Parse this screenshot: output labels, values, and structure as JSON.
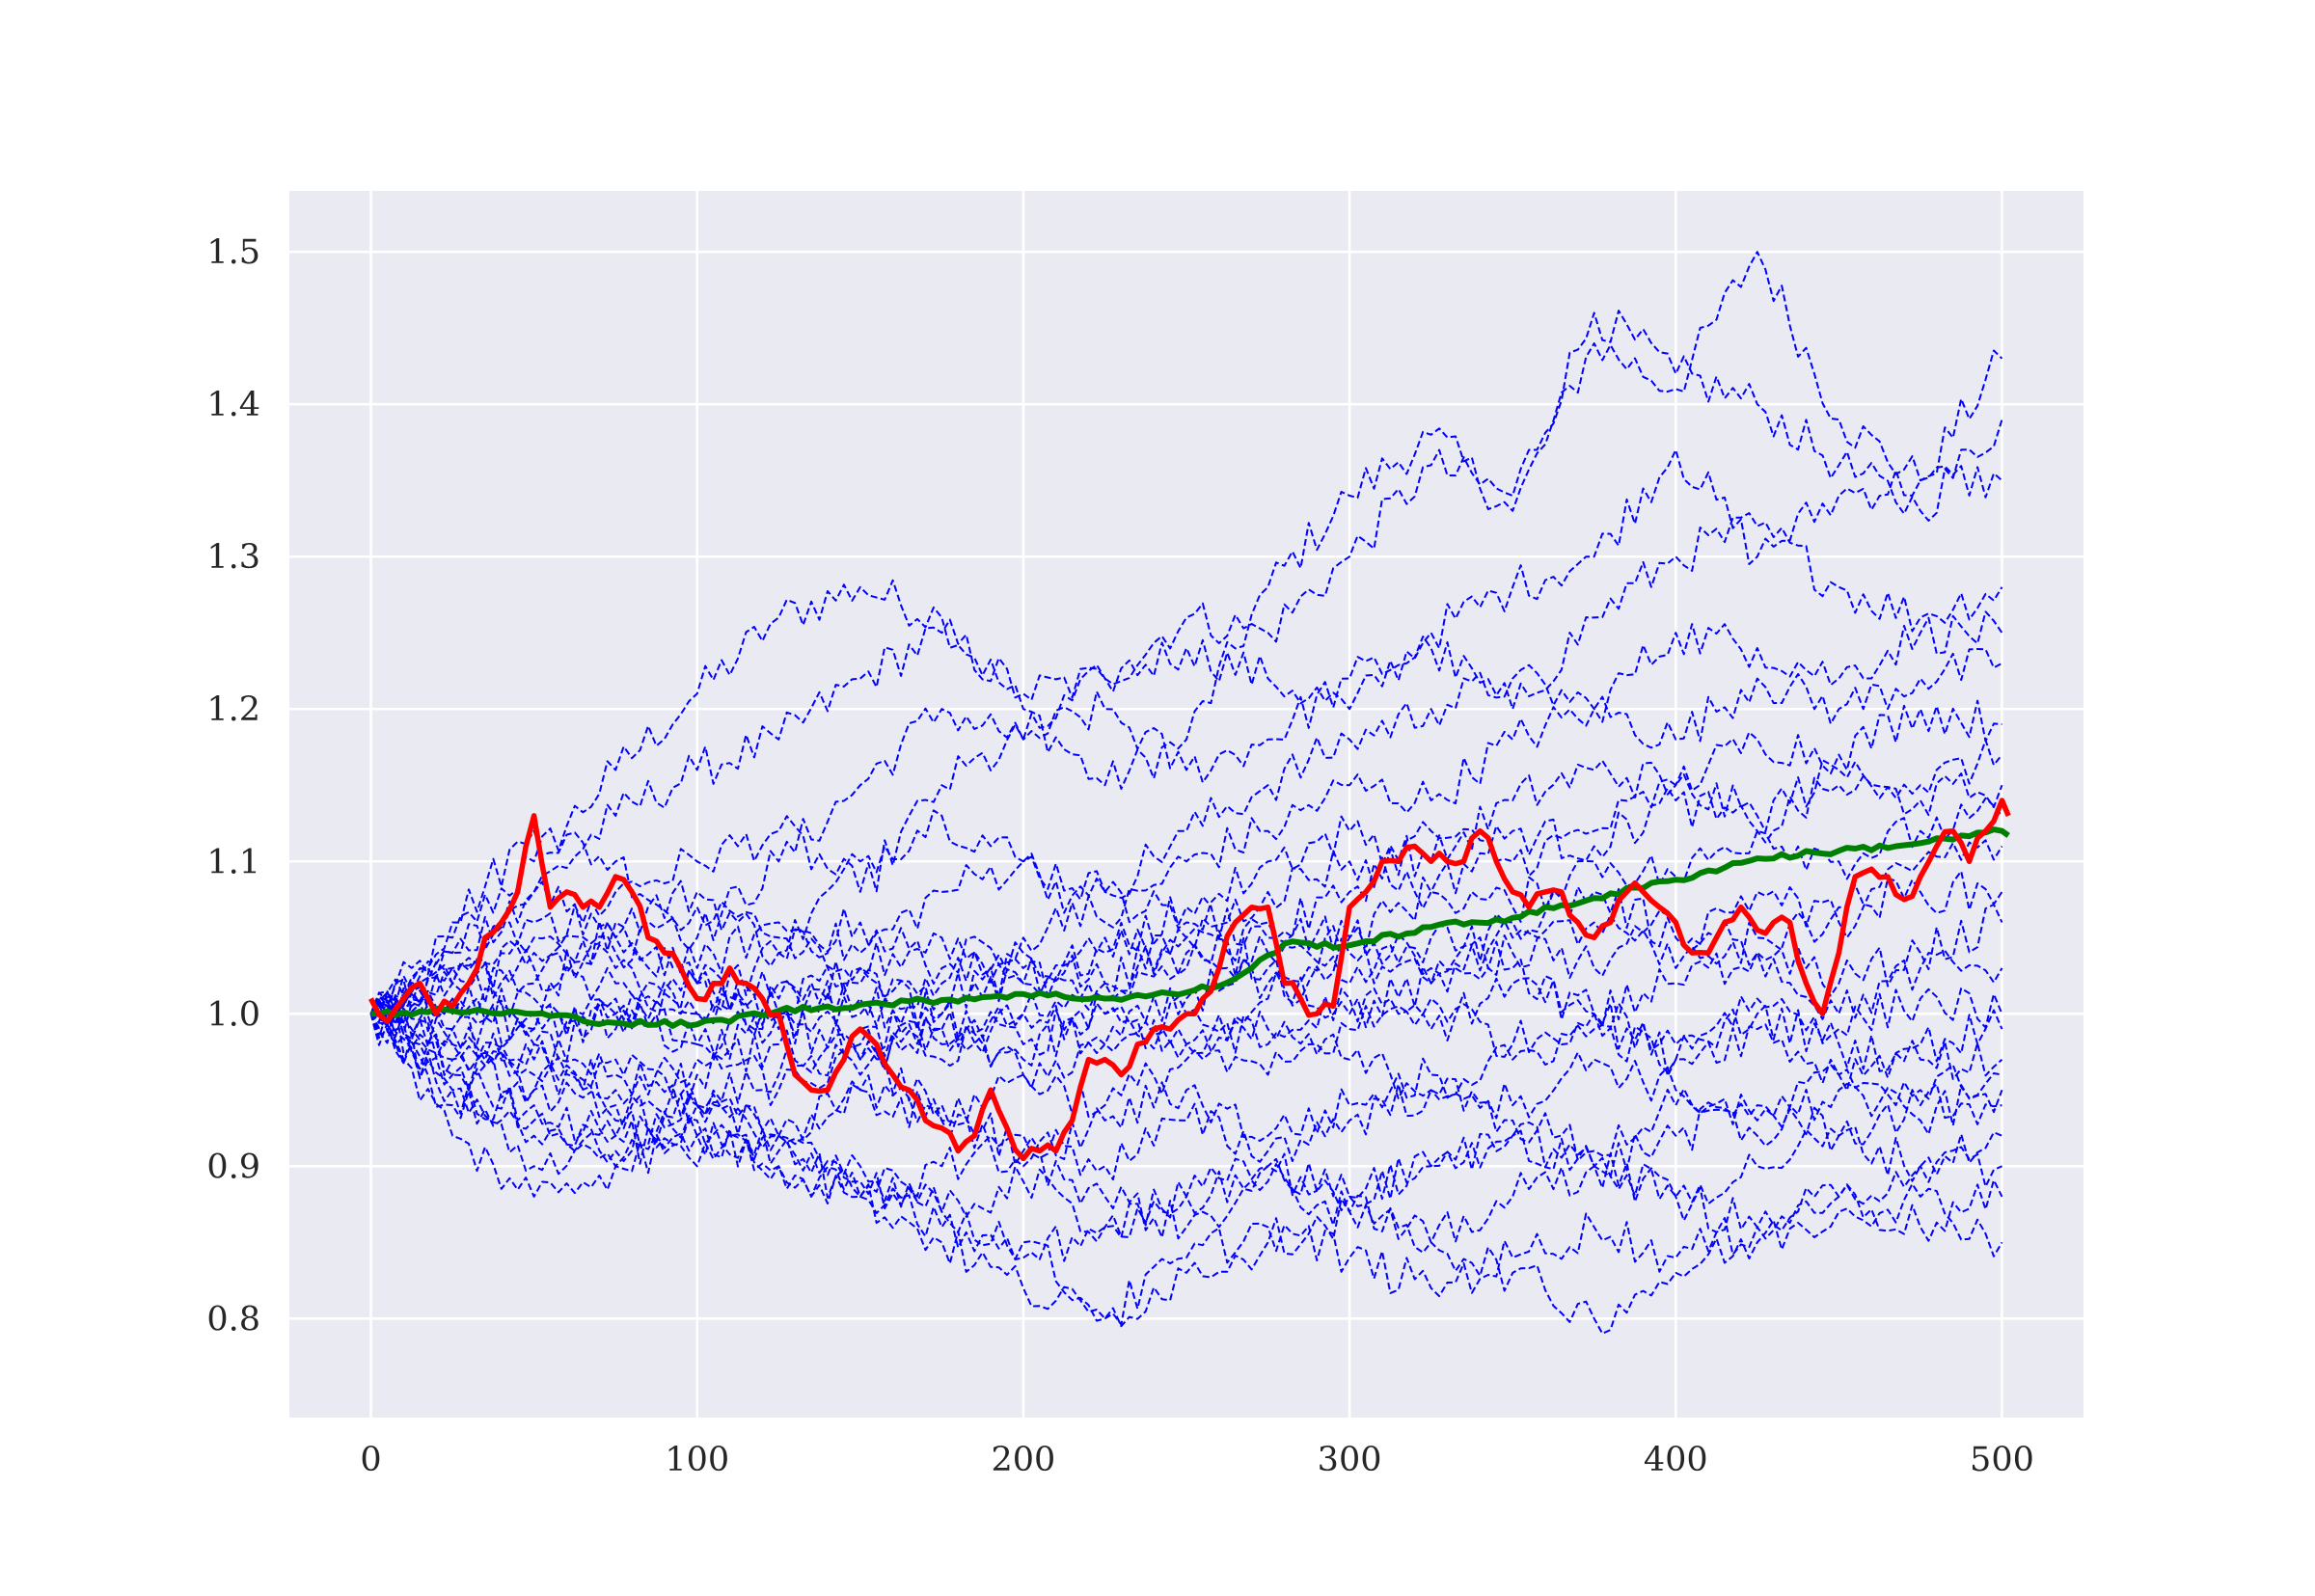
{
  "colors": {
    "background": "#eaeaf2",
    "grid": "#ffffff",
    "paths": "#0000ff",
    "highlight": "#ff0000",
    "mean": "#008000"
  },
  "chart_data": {
    "type": "line",
    "title": "",
    "xlabel": "",
    "ylabel": "",
    "xlim": [
      -25,
      525
    ],
    "ylim": [
      0.735,
      1.54
    ],
    "grid": true,
    "x_ticks": [
      0,
      100,
      200,
      300,
      400,
      500
    ],
    "x_tick_labels": [
      "0",
      "100",
      "200",
      "300",
      "400",
      "500"
    ],
    "y_ticks": [
      0.8,
      0.9,
      1.0,
      1.1,
      1.2,
      1.3,
      1.4,
      1.5
    ],
    "y_tick_labels": [
      "0.8",
      "0.9",
      "1.0",
      "1.1",
      "1.2",
      "1.3",
      "1.4",
      "1.5"
    ],
    "simulated_paths": {
      "style": "dashed",
      "x": [
        0,
        25,
        50,
        75,
        100,
        125,
        150,
        175,
        200,
        225,
        250,
        275,
        300,
        325,
        350,
        375,
        400,
        425,
        450,
        475,
        500
      ],
      "series": [
        {
          "values": [
            1.0,
            1.05,
            1.1,
            1.16,
            1.21,
            1.26,
            1.28,
            1.26,
            1.2,
            1.15,
            1.18,
            1.28,
            1.34,
            1.38,
            1.33,
            1.44,
            1.41,
            1.5,
            1.39,
            1.35,
            1.43
          ]
        },
        {
          "values": [
            1.0,
            1.04,
            1.08,
            1.13,
            1.16,
            1.18,
            1.22,
            1.25,
            1.21,
            1.22,
            1.26,
            1.25,
            1.3,
            1.36,
            1.34,
            1.46,
            1.42,
            1.4,
            1.36,
            1.33,
            1.39
          ]
        },
        {
          "values": [
            1.0,
            1.06,
            1.12,
            1.1,
            1.05,
            1.1,
            1.15,
            1.2,
            1.18,
            1.22,
            1.24,
            1.22,
            1.2,
            1.25,
            1.28,
            1.3,
            1.37,
            1.3,
            1.34,
            1.35,
            1.35
          ]
        },
        {
          "values": [
            1.0,
            1.02,
            1.04,
            1.08,
            1.1,
            1.12,
            1.08,
            1.15,
            1.18,
            1.2,
            1.16,
            1.18,
            1.22,
            1.24,
            1.2,
            1.26,
            1.3,
            1.32,
            1.28,
            1.26,
            1.28
          ]
        },
        {
          "values": [
            1.0,
            1.03,
            1.01,
            1.06,
            1.08,
            1.04,
            1.1,
            1.13,
            1.1,
            1.08,
            1.12,
            1.15,
            1.18,
            1.2,
            1.22,
            1.2,
            1.25,
            1.24,
            1.22,
            1.25,
            1.25
          ]
        },
        {
          "values": [
            1.0,
            0.98,
            1.02,
            1.05,
            1.03,
            1.06,
            1.04,
            1.08,
            1.1,
            1.06,
            1.1,
            1.12,
            1.15,
            1.14,
            1.18,
            1.2,
            1.18,
            1.22,
            1.2,
            1.22,
            1.23
          ]
        },
        {
          "values": [
            1.0,
            1.01,
            0.99,
            1.02,
            1.0,
            1.04,
            1.06,
            1.03,
            1.05,
            1.08,
            1.06,
            1.1,
            1.12,
            1.1,
            1.14,
            1.16,
            1.15,
            1.18,
            1.17,
            1.2,
            1.19
          ]
        },
        {
          "values": [
            1.0,
            0.97,
            1.0,
            0.99,
            1.02,
            1.0,
            1.03,
            1.05,
            1.02,
            1.04,
            1.07,
            1.05,
            1.08,
            1.12,
            1.1,
            1.12,
            1.15,
            1.13,
            1.16,
            1.15,
            1.17
          ]
        },
        {
          "values": [
            1.0,
            1.02,
            1.05,
            1.03,
            1.0,
            1.02,
            1.0,
            1.02,
            1.04,
            1.02,
            1.05,
            1.08,
            1.1,
            1.08,
            1.12,
            1.11,
            1.14,
            1.12,
            1.15,
            1.14,
            1.15
          ]
        },
        {
          "values": [
            1.0,
            0.99,
            0.97,
            1.0,
            0.98,
            1.01,
            1.03,
            1.0,
            1.02,
            1.05,
            1.03,
            1.06,
            1.05,
            1.08,
            1.07,
            1.1,
            1.09,
            1.12,
            1.1,
            1.12,
            1.13
          ]
        },
        {
          "values": [
            1.0,
            1.03,
            1.06,
            1.04,
            1.07,
            1.05,
            1.02,
            1.0,
            0.98,
            1.01,
            1.04,
            1.02,
            1.05,
            1.03,
            1.06,
            1.08,
            1.05,
            1.08,
            1.06,
            1.1,
            1.11
          ]
        },
        {
          "values": [
            1.0,
            0.96,
            0.98,
            0.95,
            0.97,
            1.0,
            0.98,
            1.01,
            1.03,
            1.0,
            0.98,
            1.01,
            1.04,
            1.02,
            1.05,
            1.03,
            1.06,
            1.04,
            1.07,
            1.08,
            1.08
          ]
        },
        {
          "values": [
            1.0,
            1.01,
            1.03,
            1.0,
            1.02,
            0.99,
            1.01,
            0.98,
            1.0,
            1.02,
            1.05,
            1.03,
            1.0,
            1.02,
            1.04,
            1.06,
            1.03,
            1.05,
            1.02,
            1.04,
            1.06
          ]
        },
        {
          "values": [
            1.0,
            0.98,
            0.95,
            0.97,
            0.94,
            0.96,
            0.99,
            0.97,
            1.0,
            0.98,
            1.01,
            1.04,
            1.02,
            1.05,
            1.03,
            1.0,
            1.02,
            1.04,
            1.0,
            1.03,
            1.03
          ]
        },
        {
          "values": [
            1.0,
            1.02,
            0.99,
            1.01,
            0.98,
            0.95,
            0.97,
            0.99,
            0.96,
            0.98,
            1.0,
            0.98,
            1.01,
            0.99,
            1.02,
            1.0,
            0.98,
            1.01,
            0.99,
            1.01,
            1.0
          ]
        },
        {
          "values": [
            1.0,
            0.97,
            0.95,
            0.93,
            0.96,
            0.98,
            0.96,
            0.99,
            0.97,
            1.0,
            0.98,
            0.96,
            0.99,
            1.01,
            0.98,
            1.0,
            0.97,
            0.99,
            0.96,
            0.98,
            0.99
          ]
        },
        {
          "values": [
            1.0,
            1.0,
            0.98,
            0.96,
            0.94,
            0.92,
            0.95,
            0.93,
            0.96,
            0.94,
            0.97,
            0.99,
            0.97,
            0.95,
            0.97,
            0.99,
            0.97,
            1.0,
            0.98,
            0.97,
            0.97
          ]
        },
        {
          "values": [
            1.0,
            0.95,
            0.93,
            0.91,
            0.94,
            0.92,
            0.95,
            0.93,
            0.9,
            0.93,
            0.95,
            0.92,
            0.94,
            0.96,
            0.94,
            0.97,
            0.95,
            0.93,
            0.96,
            0.95,
            0.96
          ]
        },
        {
          "values": [
            1.0,
            0.99,
            0.96,
            0.94,
            0.92,
            0.9,
            0.88,
            0.9,
            0.92,
            0.9,
            0.93,
            0.91,
            0.93,
            0.95,
            0.93,
            0.91,
            0.94,
            0.92,
            0.95,
            0.93,
            0.95
          ]
        },
        {
          "values": [
            1.0,
            0.96,
            0.94,
            0.92,
            0.9,
            0.92,
            0.89,
            0.87,
            0.89,
            0.86,
            0.88,
            0.9,
            0.88,
            0.9,
            0.92,
            0.9,
            0.92,
            0.94,
            0.92,
            0.94,
            0.94
          ]
        },
        {
          "values": [
            1.0,
            0.94,
            0.92,
            0.9,
            0.93,
            0.91,
            0.88,
            0.86,
            0.84,
            0.86,
            0.88,
            0.9,
            0.88,
            0.9,
            0.92,
            0.9,
            0.88,
            0.9,
            0.92,
            0.9,
            0.92
          ]
        },
        {
          "values": [
            1.0,
            0.92,
            0.88,
            0.9,
            0.92,
            0.9,
            0.88,
            0.85,
            0.82,
            0.8,
            0.83,
            0.85,
            0.87,
            0.85,
            0.88,
            0.9,
            0.88,
            0.86,
            0.88,
            0.9,
            0.9
          ]
        },
        {
          "values": [
            1.0,
            0.95,
            0.9,
            0.92,
            0.94,
            0.92,
            0.9,
            0.87,
            0.85,
            0.8,
            0.84,
            0.86,
            0.84,
            0.82,
            0.84,
            0.86,
            0.84,
            0.86,
            0.88,
            0.86,
            0.88
          ]
        },
        {
          "values": [
            1.0,
            1.04,
            1.08,
            1.05,
            1.02,
            1.0,
            0.97,
            0.94,
            0.91,
            0.88,
            0.86,
            0.89,
            0.87,
            0.85,
            0.83,
            0.8,
            0.83,
            0.85,
            0.87,
            0.88,
            0.85
          ]
        }
      ]
    },
    "highlight_path": {
      "style": "solid",
      "x": [
        0,
        5,
        10,
        15,
        20,
        25,
        30,
        35,
        40,
        45,
        50,
        55,
        60,
        65,
        70,
        75,
        80,
        85,
        90,
        95,
        100,
        105,
        110,
        115,
        120,
        125,
        130,
        135,
        140,
        145,
        150,
        155,
        160,
        165,
        170,
        175,
        180,
        185,
        190,
        195,
        200,
        205,
        210,
        215,
        220,
        225,
        230,
        235,
        240,
        245,
        250,
        255,
        260,
        265,
        270,
        275,
        280,
        285,
        290,
        295,
        300,
        305,
        310,
        315,
        320,
        325,
        330,
        335,
        340,
        345,
        350,
        355,
        360,
        365,
        370,
        375,
        380,
        385,
        390,
        395,
        400,
        405,
        410,
        415,
        420,
        425,
        430,
        435,
        440,
        445,
        450,
        455,
        460,
        465,
        470,
        475,
        480,
        485,
        490,
        495,
        500,
        502
      ],
      "values": [
        1.01,
        0.995,
        1.01,
        1.02,
        1.0,
        1.005,
        1.02,
        1.05,
        1.06,
        1.08,
        1.13,
        1.07,
        1.08,
        1.07,
        1.07,
        1.09,
        1.08,
        1.05,
        1.04,
        1.03,
        1.01,
        1.02,
        1.03,
        1.02,
        1.01,
        1.0,
        0.96,
        0.95,
        0.95,
        0.97,
        0.99,
        0.98,
        0.96,
        0.95,
        0.93,
        0.925,
        0.91,
        0.92,
        0.95,
        0.925,
        0.905,
        0.91,
        0.91,
        0.93,
        0.97,
        0.97,
        0.96,
        0.98,
        0.99,
        0.99,
        1.0,
        1.01,
        1.03,
        1.06,
        1.07,
        1.07,
        1.02,
        1.01,
        1.0,
        1.005,
        1.07,
        1.08,
        1.1,
        1.1,
        1.11,
        1.1,
        1.1,
        1.1,
        1.12,
        1.1,
        1.08,
        1.07,
        1.08,
        1.08,
        1.06,
        1.05,
        1.06,
        1.08,
        1.08,
        1.07,
        1.06,
        1.04,
        1.04,
        1.06,
        1.07,
        1.055,
        1.06,
        1.06,
        1.02,
        1.0,
        1.04,
        1.09,
        1.095,
        1.09,
        1.075,
        1.09,
        1.11,
        1.12,
        1.1,
        1.12,
        1.14,
        1.13
      ]
    },
    "mean_path": {
      "style": "solid",
      "x": [
        0,
        25,
        50,
        75,
        100,
        125,
        150,
        175,
        200,
        225,
        250,
        262,
        270,
        280,
        300,
        325,
        350,
        375,
        400,
        425,
        450,
        475,
        500,
        502
      ],
      "values": [
        1.0,
        1.002,
        1.0,
        0.994,
        0.993,
        1.002,
        1.006,
        1.009,
        1.013,
        1.01,
        1.014,
        1.02,
        1.03,
        1.046,
        1.045,
        1.057,
        1.063,
        1.076,
        1.088,
        1.102,
        1.107,
        1.112,
        1.12,
        1.117
      ]
    }
  }
}
